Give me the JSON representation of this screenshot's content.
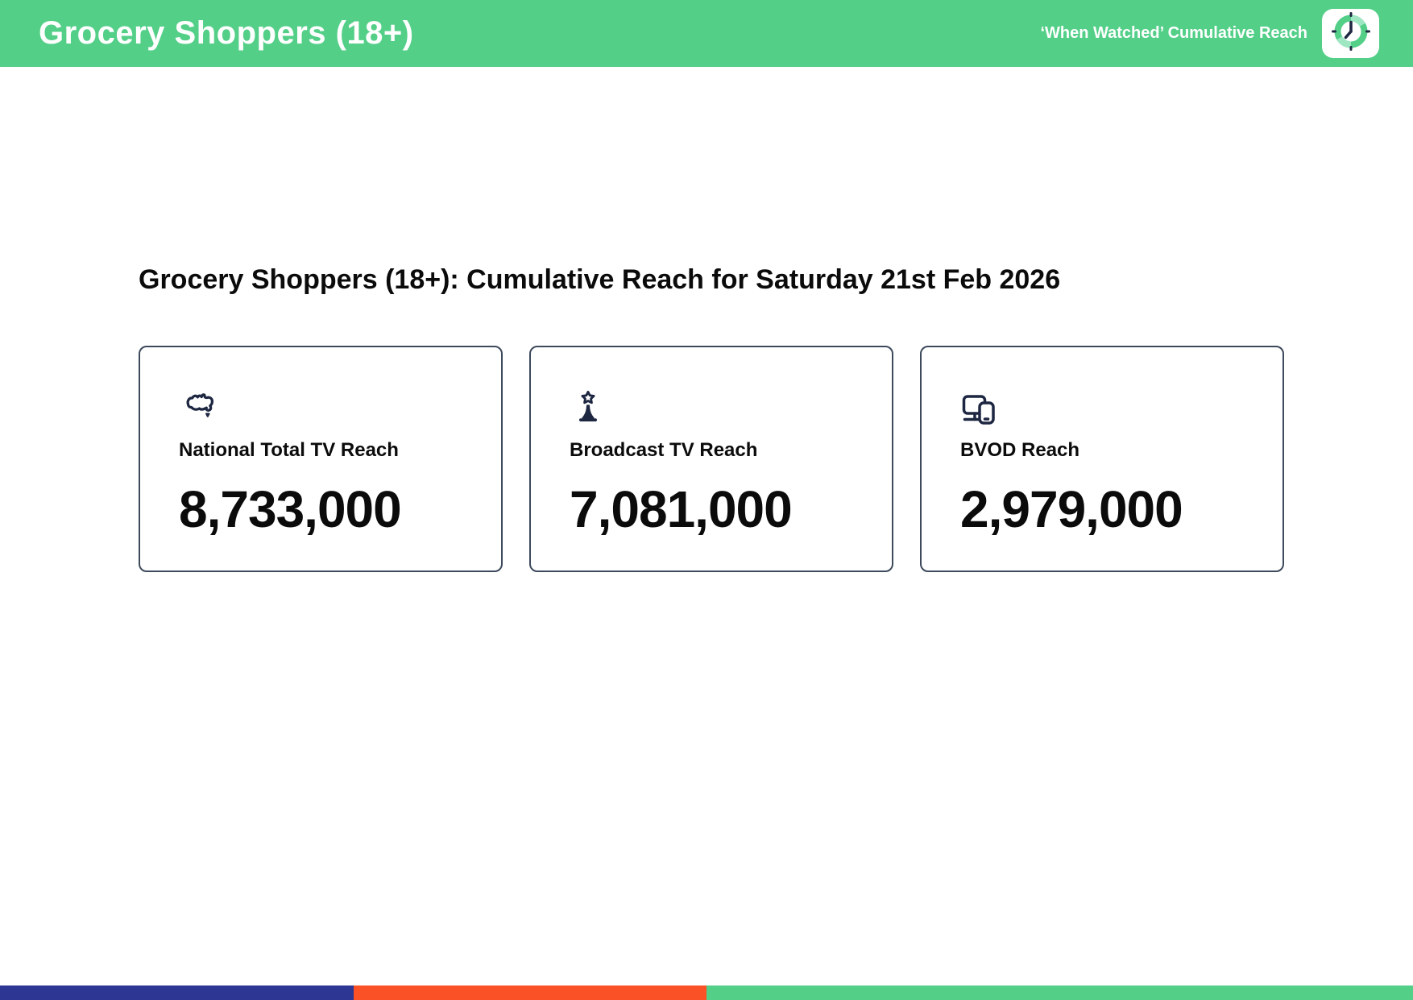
{
  "header": {
    "title": "Grocery Shoppers (18+)",
    "subtitle": "‘When Watched’ Cumulative Reach",
    "logo_icon": "clock-icon",
    "bg_color": "#53cf88",
    "text_color": "#ffffff"
  },
  "main": {
    "heading": "Grocery Shoppers (18+): Cumulative Reach for Saturday 21st Feb 2026",
    "cards": [
      {
        "icon": "australia-map-icon",
        "label": "National Total TV Reach",
        "value": "8,733,000"
      },
      {
        "icon": "broadcast-tower-icon",
        "label": "Broadcast TV Reach",
        "value": "7,081,000"
      },
      {
        "icon": "devices-icon",
        "label": "BVOD Reach",
        "value": "2,979,000"
      }
    ],
    "icon_color": "#1e2742"
  },
  "footer": {
    "segments": [
      {
        "name": "navy",
        "color": "#2d3693",
        "width_pct": 25
      },
      {
        "name": "orange",
        "color": "#fa5126",
        "width_pct": 25
      },
      {
        "name": "green",
        "color": "#53cf88",
        "width_pct": 50
      }
    ]
  }
}
